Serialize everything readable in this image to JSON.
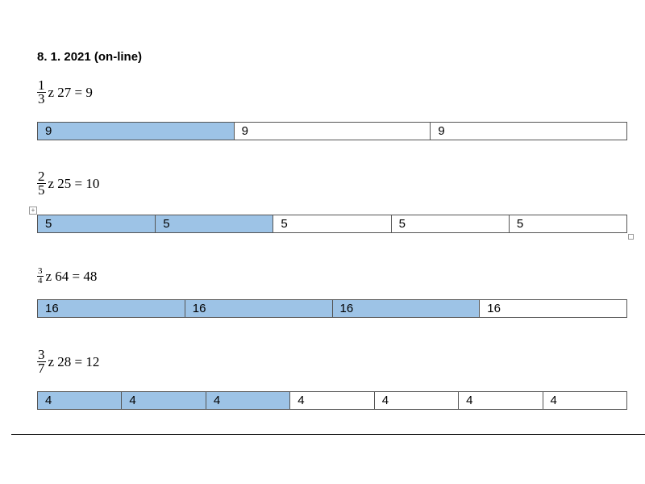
{
  "title": "8. 1. 2021 (on-line)",
  "problems": [
    {
      "numerator": 1,
      "denominator": 3,
      "expression": "z 27 = 9",
      "cells": [
        "9",
        "9",
        "9"
      ]
    },
    {
      "numerator": 2,
      "denominator": 5,
      "expression": "z 25 = 10",
      "cells": [
        "5",
        "5",
        "5",
        "5",
        "5"
      ]
    },
    {
      "numerator": 3,
      "denominator": 4,
      "expression": "z 64 = 48",
      "cells": [
        "16",
        "16",
        "16",
        "16"
      ]
    },
    {
      "numerator": 3,
      "denominator": 7,
      "expression": "z 28 = 12",
      "cells": [
        "4",
        "4",
        "4",
        "4",
        "4",
        "4",
        "4"
      ]
    }
  ]
}
